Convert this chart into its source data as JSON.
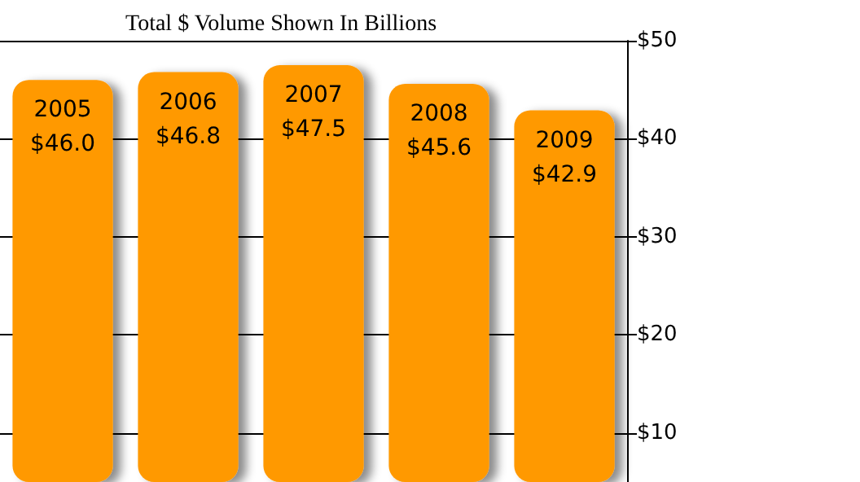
{
  "chart_data": {
    "type": "bar",
    "title": "Total $ Volume Shown In Billions",
    "categories": [
      "2005",
      "2006",
      "2007",
      "2008",
      "2009"
    ],
    "values": [
      46.0,
      46.8,
      47.5,
      45.6,
      42.9
    ],
    "value_labels": [
      "$46.0",
      "$46.8",
      "$47.5",
      "$45.6",
      "$42.9"
    ],
    "color": "#ff9900",
    "ylim": [
      5,
      50
    ],
    "yticks": [
      {
        "value": 10,
        "label": "$10"
      },
      {
        "value": 20,
        "label": "$20"
      },
      {
        "value": 30,
        "label": "$30"
      },
      {
        "value": 40,
        "label": "$40"
      },
      {
        "value": 50,
        "label": "$50"
      }
    ],
    "grid": "y"
  }
}
